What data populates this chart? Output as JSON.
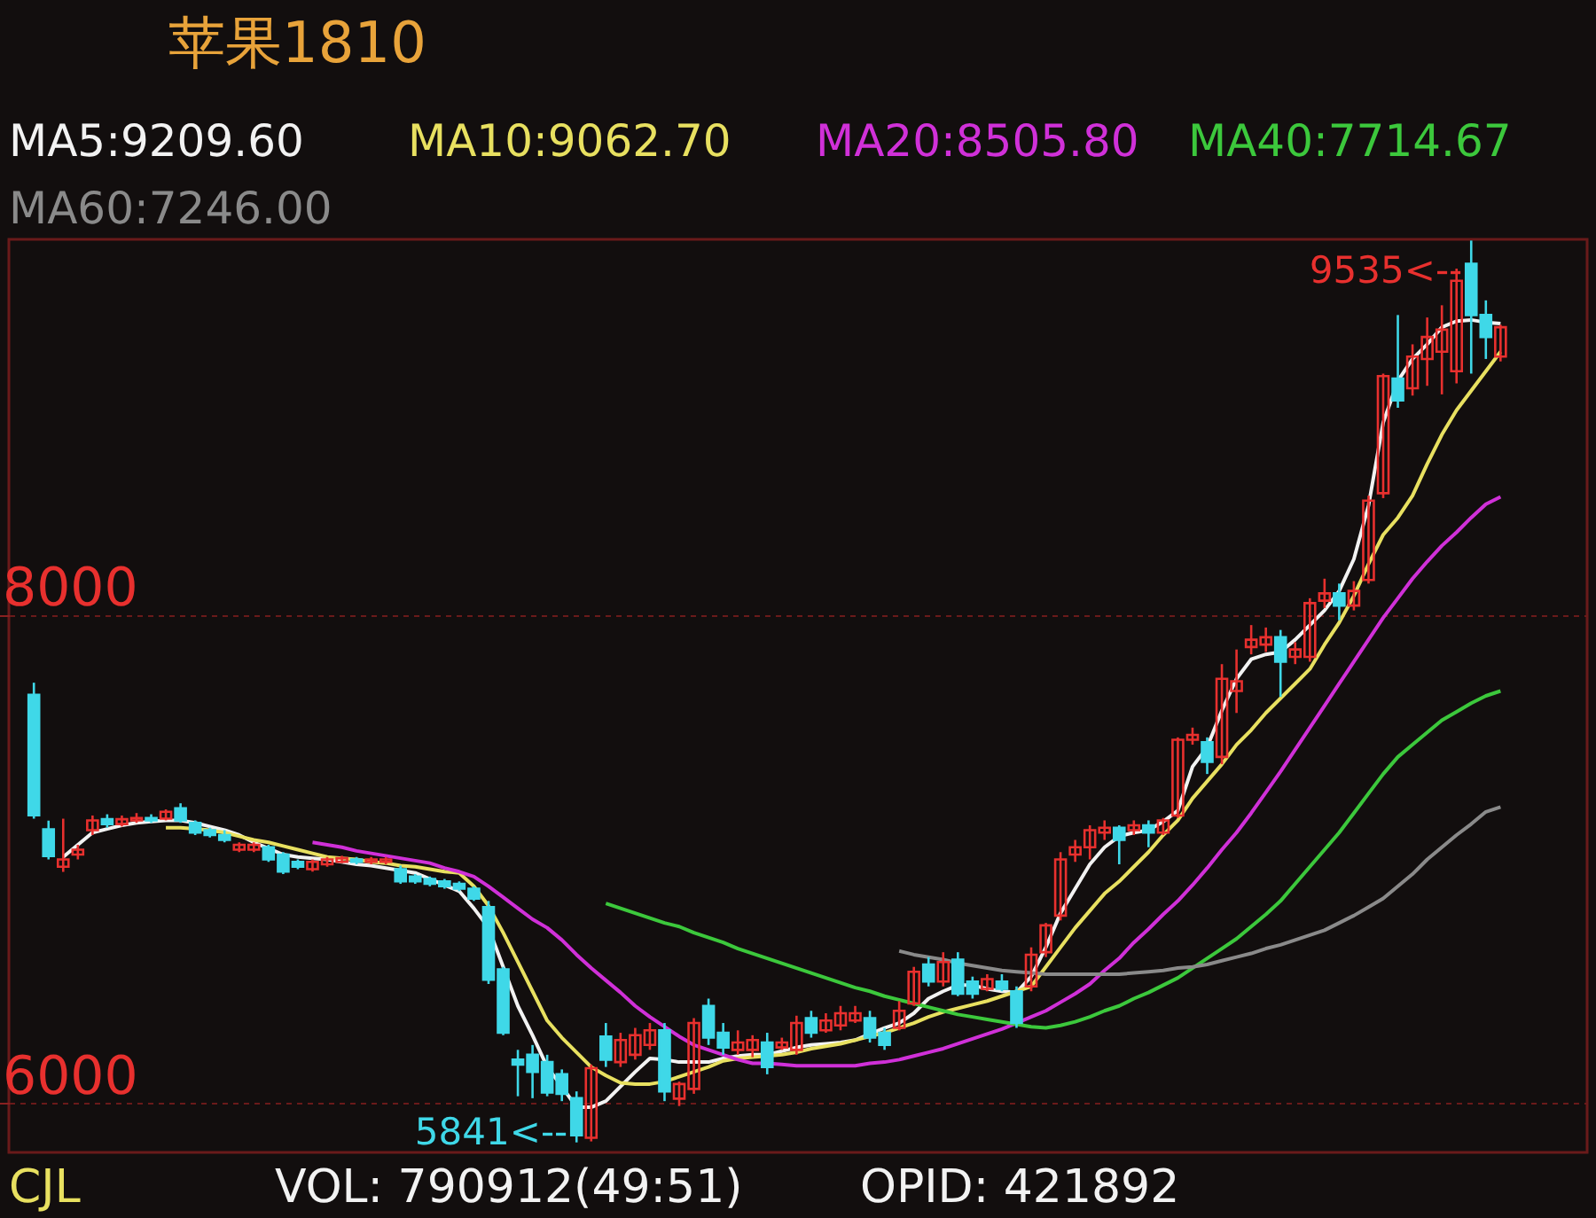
{
  "chart_data": {
    "type": "candlestick",
    "title": "苹果1810",
    "categories": [
      null,
      null,
      null,
      null,
      null,
      null,
      null,
      null,
      null,
      null,
      null,
      null,
      null,
      null,
      null,
      null,
      null,
      null,
      null,
      null,
      null,
      null,
      null,
      null,
      null,
      null,
      null,
      null,
      null,
      null,
      null,
      null,
      null,
      null,
      null,
      null,
      null,
      null,
      null,
      null,
      null,
      null,
      null,
      null,
      null,
      null,
      null,
      null,
      null,
      null,
      null,
      null,
      null,
      null,
      null,
      null,
      null,
      null,
      null,
      null,
      null,
      null,
      null,
      null,
      null,
      null,
      null,
      null,
      null,
      null,
      null,
      null,
      null,
      null,
      null,
      null,
      null,
      null,
      null,
      null,
      null,
      null,
      null,
      null,
      null,
      null,
      null,
      null,
      null,
      null,
      null,
      null,
      null,
      null,
      null,
      null,
      null,
      null,
      null,
      null,
      null
    ],
    "ohlc": [
      [
        7674,
        7724,
        7167,
        7181
      ],
      [
        7123,
        7159,
        7000,
        7014
      ],
      [
        6970,
        7167,
        6949,
        7000
      ],
      [
        7020,
        7060,
        7000,
        7040
      ],
      [
        7120,
        7180,
        7100,
        7160
      ],
      [
        7165,
        7185,
        7130,
        7145
      ],
      [
        7145,
        7180,
        7135,
        7165
      ],
      [
        7160,
        7190,
        7150,
        7170
      ],
      [
        7170,
        7185,
        7150,
        7160
      ],
      [
        7167,
        7205,
        7160,
        7195
      ],
      [
        7210,
        7230,
        7150,
        7160
      ],
      [
        7150,
        7160,
        7100,
        7110
      ],
      [
        7120,
        7130,
        7090,
        7100
      ],
      [
        7100,
        7120,
        7070,
        7080
      ],
      [
        7040,
        7070,
        7030,
        7060
      ],
      [
        7040,
        7070,
        7030,
        7060
      ],
      [
        7050,
        7060,
        6990,
        7000
      ],
      [
        7020,
        7030,
        6940,
        6950
      ],
      [
        6990,
        7000,
        6960,
        6970
      ],
      [
        6960,
        7000,
        6950,
        6990
      ],
      [
        6980,
        7010,
        6970,
        7000
      ],
      [
        6990,
        7015,
        6985,
        7005
      ],
      [
        7000,
        7010,
        6980,
        6990
      ],
      [
        6990,
        7010,
        6980,
        7000
      ],
      [
        6990,
        7010,
        6980,
        7000
      ],
      [
        6960,
        6975,
        6900,
        6910
      ],
      [
        6930,
        6940,
        6900,
        6910
      ],
      [
        6920,
        6930,
        6890,
        6900
      ],
      [
        6910,
        6920,
        6880,
        6890
      ],
      [
        6900,
        6910,
        6870,
        6880
      ],
      [
        6880,
        6890,
        6830,
        6840
      ],
      [
        6805,
        6830,
        6490,
        6507
      ],
      [
        6550,
        6560,
        6280,
        6290
      ],
      [
        6180,
        6220,
        6030,
        6160
      ],
      [
        6200,
        6240,
        6022,
        6130
      ],
      [
        6170,
        6200,
        6030,
        6045
      ],
      [
        6120,
        6140,
        6010,
        6040
      ],
      [
        6022,
        6050,
        5841,
        5870
      ],
      [
        5860,
        6160,
        5845,
        6145
      ],
      [
        6275,
        6330,
        6150,
        6180
      ],
      [
        6170,
        6290,
        6150,
        6260
      ],
      [
        6200,
        6310,
        6180,
        6280
      ],
      [
        6240,
        6330,
        6220,
        6300
      ],
      [
        6300,
        6330,
        6010,
        6050
      ],
      [
        6020,
        6090,
        5990,
        6080
      ],
      [
        6060,
        6350,
        6040,
        6330
      ],
      [
        6400,
        6430,
        6240,
        6270
      ],
      [
        6290,
        6330,
        6200,
        6230
      ],
      [
        6220,
        6300,
        6200,
        6250
      ],
      [
        6220,
        6280,
        6190,
        6260
      ],
      [
        6250,
        6290,
        6120,
        6150
      ],
      [
        6230,
        6270,
        6220,
        6250
      ],
      [
        6220,
        6360,
        6200,
        6330
      ],
      [
        6350,
        6380,
        6270,
        6290
      ],
      [
        6300,
        6370,
        6290,
        6340
      ],
      [
        6320,
        6400,
        6300,
        6370
      ],
      [
        6340,
        6400,
        6330,
        6370
      ],
      [
        6350,
        6380,
        6250,
        6270
      ],
      [
        6290,
        6310,
        6220,
        6240
      ],
      [
        6310,
        6420,
        6300,
        6380
      ],
      [
        6410,
        6560,
        6400,
        6540
      ],
      [
        6570,
        6600,
        6480,
        6500
      ],
      [
        6500,
        6620,
        6480,
        6580
      ],
      [
        6590,
        6620,
        6440,
        6450
      ],
      [
        6500,
        6520,
        6430,
        6450
      ],
      [
        6470,
        6530,
        6460,
        6510
      ],
      [
        6500,
        6530,
        6460,
        6470
      ],
      [
        6460,
        6480,
        6310,
        6330
      ],
      [
        6480,
        6640,
        6460,
        6610
      ],
      [
        6620,
        6740,
        6600,
        6730
      ],
      [
        6770,
        7030,
        6750,
        7000
      ],
      [
        7020,
        7080,
        6990,
        7050
      ],
      [
        7050,
        7140,
        7000,
        7120
      ],
      [
        7110,
        7160,
        7080,
        7130
      ],
      [
        7130,
        7140,
        6980,
        7080
      ],
      [
        7120,
        7160,
        7100,
        7140
      ],
      [
        7140,
        7160,
        7050,
        7110
      ],
      [
        7110,
        7170,
        7100,
        7160
      ],
      [
        7180,
        7500,
        7170,
        7490
      ],
      [
        7490,
        7540,
        7470,
        7510
      ],
      [
        7480,
        7500,
        7350,
        7400
      ],
      [
        7420,
        7800,
        7390,
        7740
      ],
      [
        7690,
        7860,
        7600,
        7730
      ],
      [
        7870,
        7960,
        7840,
        7900
      ],
      [
        7880,
        7950,
        7850,
        7910
      ],
      [
        7910,
        7940,
        7666,
        7810
      ],
      [
        7830,
        7890,
        7800,
        7860
      ],
      [
        7830,
        8070,
        7810,
        8050
      ],
      [
        8060,
        8150,
        8030,
        8090
      ],
      [
        8090,
        8130,
        7980,
        8040
      ],
      [
        8040,
        8140,
        8020,
        8100
      ],
      [
        8145,
        8490,
        8130,
        8470
      ],
      [
        8500,
        8990,
        8480,
        8980
      ],
      [
        8970,
        9230,
        8850,
        8880
      ],
      [
        8930,
        9110,
        8900,
        9060
      ],
      [
        9050,
        9220,
        8940,
        9140
      ],
      [
        9080,
        9270,
        8905,
        9170
      ],
      [
        9000,
        9420,
        8950,
        9370
      ],
      [
        9440,
        9535,
        8990,
        9230
      ],
      [
        9230,
        9290,
        9050,
        9140
      ],
      [
        9060,
        9190,
        9040,
        9180
      ]
    ],
    "colors": [
      "#3fd8e8",
      "#3fd8e8",
      "#e8302e",
      "#e8302e",
      "#e8302e",
      "#3fd8e8",
      "#e8302e",
      "#e8302e",
      "#3fd8e8",
      "#e8302e",
      "#3fd8e8",
      "#3fd8e8",
      "#3fd8e8",
      "#3fd8e8",
      "#e8302e",
      "#e8302e",
      "#3fd8e8",
      "#3fd8e8",
      "#3fd8e8",
      "#e8302e",
      "#e8302e",
      "#e8302e",
      "#3fd8e8",
      "#e8302e",
      "#e8302e",
      "#3fd8e8",
      "#3fd8e8",
      "#3fd8e8",
      "#3fd8e8",
      "#3fd8e8",
      "#3fd8e8",
      "#3fd8e8",
      "#3fd8e8",
      "#3fd8e8",
      "#3fd8e8",
      "#3fd8e8",
      "#3fd8e8",
      "#3fd8e8",
      "#e8302e",
      "#3fd8e8",
      "#e8302e",
      "#e8302e",
      "#e8302e",
      "#3fd8e8",
      "#e8302e",
      "#e8302e",
      "#3fd8e8",
      "#3fd8e8",
      "#e8302e",
      "#e8302e",
      "#3fd8e8",
      "#e8302e",
      "#e8302e",
      "#3fd8e8",
      "#e8302e",
      "#e8302e",
      "#e8302e",
      "#3fd8e8",
      "#3fd8e8",
      "#e8302e",
      "#e8302e",
      "#3fd8e8",
      "#e8302e",
      "#3fd8e8",
      "#3fd8e8",
      "#e8302e",
      "#3fd8e8",
      "#3fd8e8",
      "#e8302e",
      "#e8302e",
      "#e8302e",
      "#e8302e",
      "#e8302e",
      "#e8302e",
      "#3fd8e8",
      "#e8302e",
      "#3fd8e8",
      "#e8302e",
      "#e8302e",
      "#e8302e",
      "#3fd8e8",
      "#e8302e",
      "#e8302e",
      "#e8302e",
      "#e8302e",
      "#3fd8e8",
      "#e8302e",
      "#e8302e",
      "#e8302e",
      "#3fd8e8",
      "#e8302e",
      "#e8302e",
      "#e8302e",
      "#3fd8e8",
      "#e8302e",
      "#e8302e",
      "#e8302e",
      "#e8302e",
      "#3fd8e8",
      "#3fd8e8",
      "#e8302e"
    ],
    "series": [
      {
        "name": "MA5:9209.60",
        "color": "#f2f2f2",
        "type": "line",
        "values": [
          null,
          null,
          7010,
          7060,
          7110,
          7125,
          7140,
          7150,
          7155,
          7160,
          7160,
          7150,
          7135,
          7120,
          7100,
          7070,
          7045,
          7020,
          7010,
          7005,
          7000,
          6990,
          6980,
          6975,
          6965,
          6955,
          6945,
          6920,
          6895,
          6870,
          6800,
          6720,
          6560,
          6400,
          6280,
          6150,
          6070,
          5985,
          5985,
          6010,
          6070,
          6130,
          6185,
          6180,
          6170,
          6170,
          6170,
          6185,
          6195,
          6200,
          6200,
          6215,
          6230,
          6240,
          6245,
          6250,
          6260,
          6285,
          6310,
          6330,
          6370,
          6430,
          6460,
          6485,
          6485,
          6470,
          6460,
          6455,
          6520,
          6640,
          6780,
          6880,
          6980,
          7050,
          7095,
          7110,
          7120,
          7155,
          7200,
          7380,
          7460,
          7610,
          7740,
          7820,
          7840,
          7850,
          7900,
          7960,
          8020,
          8100,
          8230,
          8450,
          8790,
          8960,
          9050,
          9110,
          9180,
          9205,
          9210,
          9200,
          9195
        ]
      },
      {
        "name": "MA10:9062.70",
        "color": "#e8e060",
        "type": "line",
        "values": [
          null,
          null,
          null,
          null,
          null,
          null,
          null,
          null,
          null,
          7130,
          7130,
          7125,
          7120,
          7110,
          7095,
          7080,
          7070,
          7055,
          7040,
          7025,
          7010,
          7005,
          7000,
          6990,
          6985,
          6975,
          6970,
          6960,
          6950,
          6945,
          6890,
          6810,
          6700,
          6580,
          6460,
          6340,
          6270,
          6210,
          6150,
          6115,
          6085,
          6080,
          6080,
          6090,
          6110,
          6130,
          6150,
          6175,
          6185,
          6190,
          6195,
          6200,
          6210,
          6225,
          6235,
          6245,
          6260,
          6275,
          6290,
          6310,
          6330,
          6355,
          6375,
          6390,
          6405,
          6420,
          6440,
          6460,
          6480,
          6560,
          6640,
          6720,
          6790,
          6860,
          6910,
          6970,
          7030,
          7100,
          7160,
          7250,
          7320,
          7390,
          7470,
          7530,
          7600,
          7660,
          7720,
          7780,
          7880,
          7970,
          8080,
          8210,
          8330,
          8400,
          8490,
          8620,
          8740,
          8840,
          8920,
          9000,
          9080
        ]
      },
      {
        "name": "MA20:8505.80",
        "color": "#d030d8",
        "type": "line",
        "values": [
          null,
          null,
          null,
          null,
          null,
          null,
          null,
          null,
          null,
          null,
          null,
          null,
          null,
          null,
          null,
          null,
          null,
          null,
          null,
          7070,
          7060,
          7050,
          7035,
          7025,
          7015,
          7005,
          6995,
          6985,
          6965,
          6950,
          6930,
          6890,
          6845,
          6800,
          6755,
          6720,
          6670,
          6610,
          6555,
          6505,
          6455,
          6400,
          6355,
          6315,
          6275,
          6240,
          6220,
          6200,
          6180,
          6165,
          6165,
          6160,
          6155,
          6155,
          6155,
          6155,
          6155,
          6165,
          6170,
          6180,
          6195,
          6210,
          6225,
          6245,
          6265,
          6285,
          6305,
          6330,
          6355,
          6380,
          6415,
          6450,
          6490,
          6545,
          6595,
          6660,
          6715,
          6775,
          6830,
          6895,
          6965,
          7040,
          7110,
          7190,
          7275,
          7360,
          7450,
          7540,
          7630,
          7720,
          7810,
          7900,
          7990,
          8070,
          8150,
          8220,
          8285,
          8340,
          8400,
          8455,
          8485
        ]
      },
      {
        "name": "MA40:7714.67",
        "color": "#3cc83c",
        "type": "line",
        "values": [
          null,
          null,
          null,
          null,
          null,
          null,
          null,
          null,
          null,
          null,
          null,
          null,
          null,
          null,
          null,
          null,
          null,
          null,
          null,
          null,
          null,
          null,
          null,
          null,
          null,
          null,
          null,
          null,
          null,
          null,
          null,
          null,
          null,
          null,
          null,
          null,
          null,
          null,
          null,
          6820,
          6800,
          6780,
          6760,
          6740,
          6725,
          6700,
          6680,
          6660,
          6635,
          6615,
          6595,
          6575,
          6555,
          6535,
          6515,
          6495,
          6475,
          6460,
          6440,
          6425,
          6410,
          6395,
          6380,
          6365,
          6355,
          6345,
          6335,
          6325,
          6315,
          6310,
          6320,
          6335,
          6355,
          6380,
          6400,
          6430,
          6455,
          6485,
          6515,
          6555,
          6595,
          6635,
          6675,
          6725,
          6775,
          6830,
          6900,
          6970,
          7040,
          7110,
          7190,
          7270,
          7350,
          7420,
          7470,
          7520,
          7570,
          7605,
          7640,
          7670,
          7690
        ]
      },
      {
        "name": "MA60:7246.00",
        "color": "#8a8a8a",
        "type": "line",
        "values": [
          null,
          null,
          null,
          null,
          null,
          null,
          null,
          null,
          null,
          null,
          null,
          null,
          null,
          null,
          null,
          null,
          null,
          null,
          null,
          null,
          null,
          null,
          null,
          null,
          null,
          null,
          null,
          null,
          null,
          null,
          null,
          null,
          null,
          null,
          null,
          null,
          null,
          null,
          null,
          null,
          null,
          null,
          null,
          null,
          null,
          null,
          null,
          null,
          null,
          null,
          null,
          null,
          null,
          null,
          null,
          null,
          null,
          null,
          null,
          6625,
          6610,
          6600,
          6590,
          6575,
          6565,
          6555,
          6545,
          6540,
          6535,
          6530,
          6530,
          6530,
          6530,
          6530,
          6530,
          6535,
          6540,
          6545,
          6555,
          6560,
          6570,
          6585,
          6600,
          6615,
          6635,
          6650,
          6670,
          6690,
          6710,
          6740,
          6770,
          6805,
          6840,
          6890,
          6940,
          7000,
          7050,
          7100,
          7145,
          7195,
          7215
        ]
      }
    ],
    "ylim": [
      5800,
      9540
    ],
    "yticks": [
      8000,
      6000
    ],
    "grid": "y",
    "legend": "top",
    "annotations": [
      "9535<--",
      "5841<--",
      "CJL",
      "VOL: 790912(49:51)",
      "OPID: 421892"
    ]
  }
}
